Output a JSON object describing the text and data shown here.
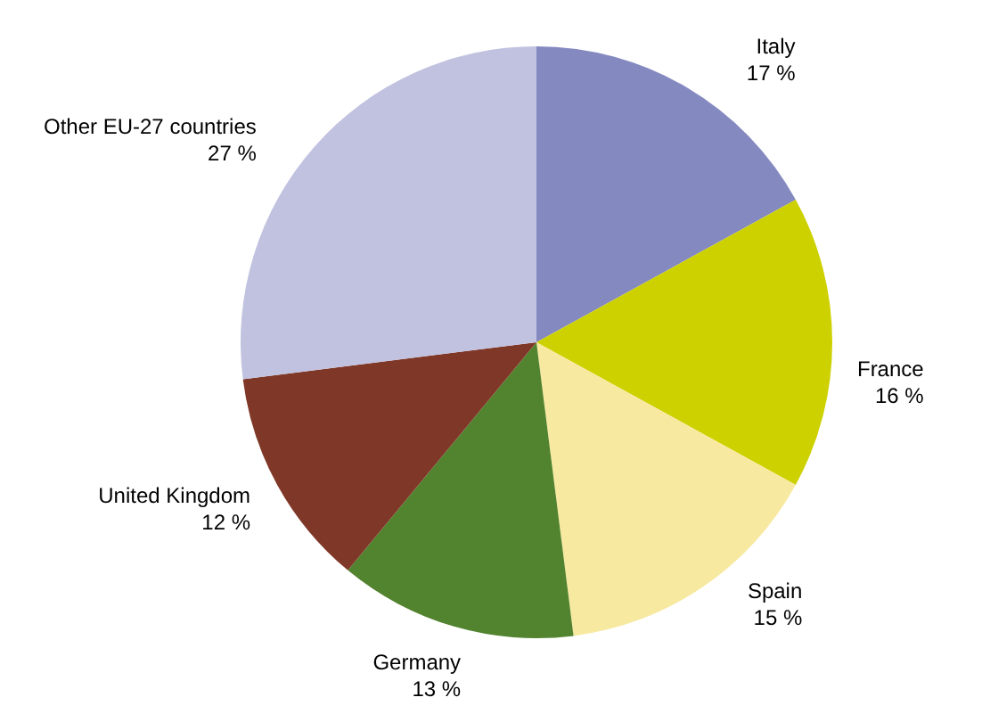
{
  "chart_data": {
    "type": "pie",
    "categories": [
      "Italy",
      "France",
      "Spain",
      "Germany",
      "United Kingdom",
      "Other EU-27 countries"
    ],
    "values": [
      17,
      16,
      15,
      13,
      12,
      27
    ],
    "colors": [
      "#8489c0",
      "#cdd100",
      "#f8e9a1",
      "#52832f",
      "#7f3727",
      "#c1c2e0"
    ],
    "value_labels": [
      "17 %",
      "16 %",
      "15 %",
      "13 %",
      "12 %",
      "27 %"
    ]
  }
}
